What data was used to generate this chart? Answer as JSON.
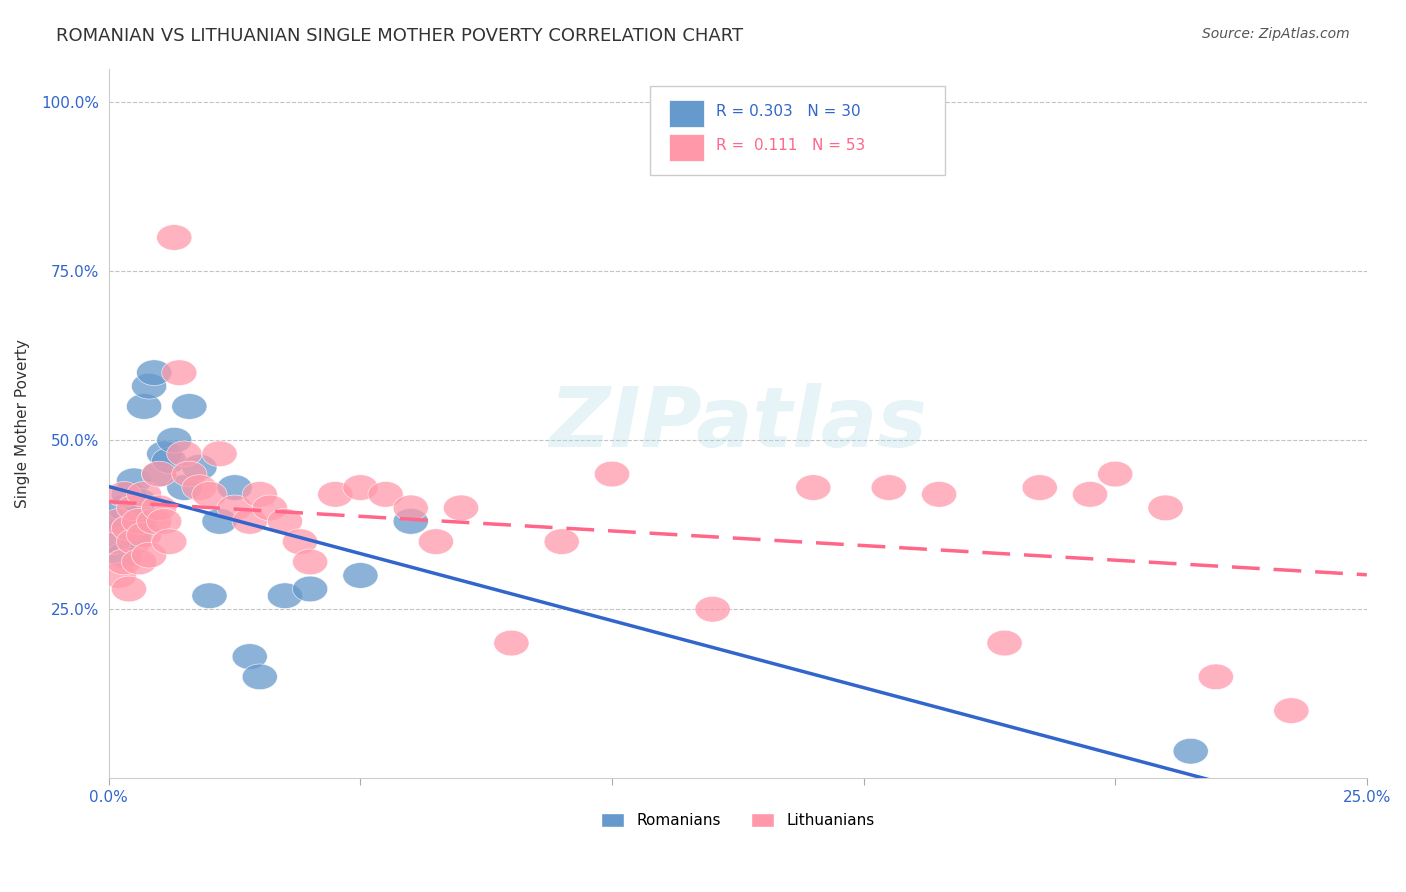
{
  "title": "ROMANIAN VS LITHUANIAN SINGLE MOTHER POVERTY CORRELATION CHART",
  "source": "Source: ZipAtlas.com",
  "ylabel": "Single Mother Poverty",
  "xlabel": "",
  "xlim": [
    0.0,
    0.25
  ],
  "ylim": [
    0.0,
    1.05
  ],
  "yticks": [
    0.25,
    0.5,
    0.75,
    1.0
  ],
  "ytick_labels": [
    "25.0%",
    "50.0%",
    "75.0%",
    "100.0%"
  ],
  "xticks": [
    0.0,
    0.05,
    0.1,
    0.15,
    0.2,
    0.25
  ],
  "xtick_labels": [
    "0.0%",
    "",
    "",
    "",
    "",
    "25.0%"
  ],
  "blue_color": "#6699CC",
  "pink_color": "#FF99AA",
  "blue_line_color": "#3366CC",
  "pink_line_color": "#FF6688",
  "watermark": "ZIPatlas",
  "background_color": "#FFFFFF",
  "title_fontsize": 13,
  "axis_label_fontsize": 11,
  "tick_fontsize": 11,
  "romanian_x": [
    0.001,
    0.002,
    0.003,
    0.003,
    0.004,
    0.004,
    0.005,
    0.005,
    0.006,
    0.006,
    0.007,
    0.008,
    0.009,
    0.01,
    0.011,
    0.012,
    0.013,
    0.015,
    0.016,
    0.018,
    0.02,
    0.022,
    0.025,
    0.028,
    0.03,
    0.035,
    0.04,
    0.05,
    0.06,
    0.215
  ],
  "romanian_y": [
    0.38,
    0.35,
    0.33,
    0.4,
    0.37,
    0.42,
    0.36,
    0.44,
    0.38,
    0.41,
    0.55,
    0.58,
    0.6,
    0.45,
    0.48,
    0.47,
    0.5,
    0.43,
    0.55,
    0.46,
    0.27,
    0.38,
    0.43,
    0.18,
    0.15,
    0.27,
    0.28,
    0.3,
    0.38,
    0.04
  ],
  "lithuanian_x": [
    0.001,
    0.002,
    0.002,
    0.003,
    0.003,
    0.004,
    0.004,
    0.005,
    0.005,
    0.006,
    0.006,
    0.007,
    0.007,
    0.008,
    0.009,
    0.01,
    0.01,
    0.011,
    0.012,
    0.013,
    0.014,
    0.015,
    0.016,
    0.018,
    0.02,
    0.022,
    0.025,
    0.028,
    0.03,
    0.032,
    0.035,
    0.038,
    0.04,
    0.045,
    0.05,
    0.055,
    0.06,
    0.065,
    0.07,
    0.08,
    0.09,
    0.1,
    0.12,
    0.14,
    0.155,
    0.165,
    0.178,
    0.185,
    0.195,
    0.2,
    0.21,
    0.22,
    0.235
  ],
  "lithuanian_y": [
    0.35,
    0.3,
    0.38,
    0.32,
    0.42,
    0.28,
    0.37,
    0.35,
    0.4,
    0.32,
    0.38,
    0.36,
    0.42,
    0.33,
    0.38,
    0.4,
    0.45,
    0.38,
    0.35,
    0.8,
    0.6,
    0.48,
    0.45,
    0.43,
    0.42,
    0.48,
    0.4,
    0.38,
    0.42,
    0.4,
    0.38,
    0.35,
    0.32,
    0.42,
    0.43,
    0.42,
    0.4,
    0.35,
    0.4,
    0.2,
    0.35,
    0.45,
    0.25,
    0.43,
    0.43,
    0.42,
    0.2,
    0.43,
    0.42,
    0.45,
    0.4,
    0.15,
    0.1
  ]
}
